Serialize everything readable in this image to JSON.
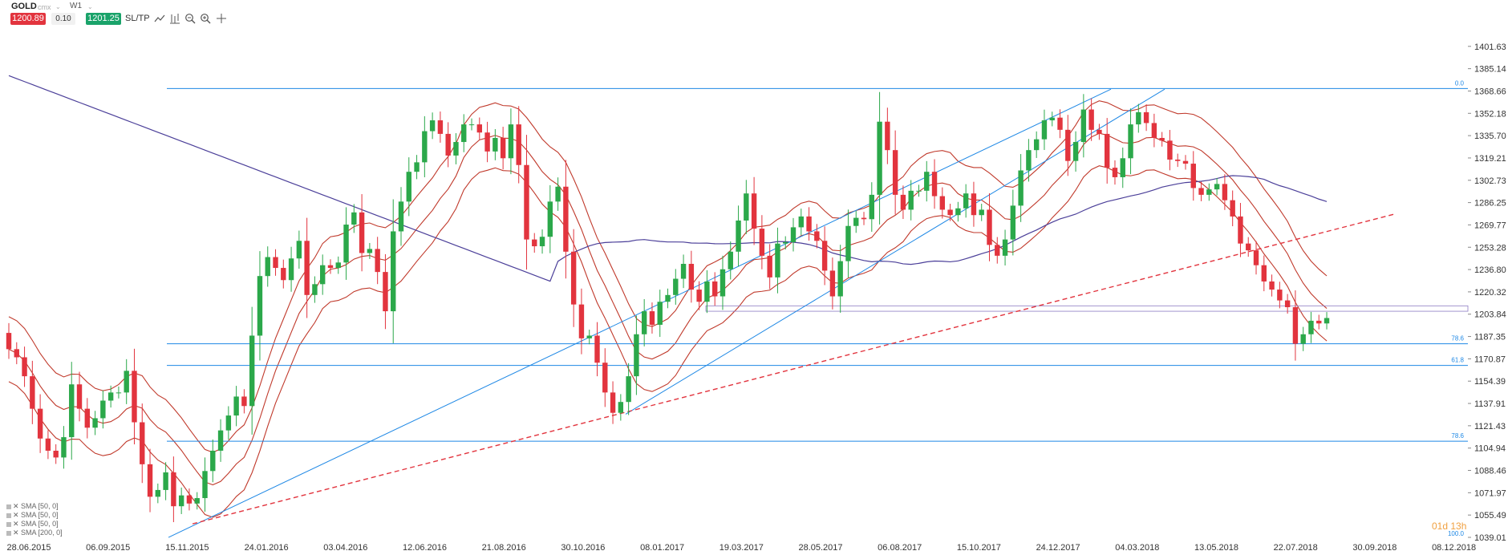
{
  "toolbar": {
    "symbol": "GOLD",
    "symbol_sub": "cmx",
    "timeframe": "W1",
    "sell_price": "1200.89",
    "volume": "0.10",
    "buy_price": "1201.25",
    "sltp_label": "SL/TP",
    "icons": [
      "line-tool-icon",
      "bars-icon",
      "zoom-out-icon",
      "zoom-in-icon",
      "crosshair-icon"
    ]
  },
  "colors": {
    "bull": "#2ba84a",
    "bear": "#e2343e",
    "fib": "#1e88e5",
    "trend": "#1e88e5",
    "dashed": "#e2343e",
    "envelope": "#c0392b",
    "sma200": "#4b3f99",
    "zone": "#8e7cc3",
    "timer": "#f0a040"
  },
  "legend": [
    "SMA [50, 0]",
    "SMA [50, 0]",
    "SMA [50, 0]",
    "SMA [200, 0]"
  ],
  "timer": "01d 13h",
  "chart_data": {
    "type": "candlestick",
    "ylim": [
      1039.01,
      1418.1
    ],
    "y_ticks": [
      "1401.63",
      "1385.14",
      "1368.66",
      "1352.18",
      "1335.70",
      "1319.21",
      "1302.73",
      "1286.25",
      "1269.77",
      "1253.28",
      "1236.80",
      "1220.32",
      "1203.84",
      "1187.35",
      "1170.87",
      "1154.39",
      "1137.91",
      "1121.43",
      "1104.94",
      "1088.46",
      "1071.97",
      "1055.49",
      "1039.01"
    ],
    "x_ticks": [
      "28.06.2015",
      "06.09.2015",
      "15.11.2015",
      "24.01.2016",
      "03.04.2016",
      "12.06.2016",
      "21.08.2016",
      "30.10.2016",
      "08.01.2017",
      "19.03.2017",
      "28.05.2017",
      "06.08.2017",
      "15.10.2017",
      "24.12.2017",
      "04.03.2018",
      "13.05.2018",
      "22.07.2018",
      "30.09.2018",
      "08.12.2018"
    ],
    "fib_levels": [
      {
        "label": "0.0",
        "value": 1370.5
      },
      {
        "label": "78.6",
        "value": 1182.0
      },
      {
        "label": "61.8",
        "value": 1166.0
      },
      {
        "label": "78.6",
        "value": 1110.0
      },
      {
        "label": "100.0",
        "value": 1039.01
      }
    ],
    "closes": [
      1178,
      1172,
      1158,
      1134,
      1112,
      1103,
      1098,
      1113,
      1152,
      1134,
      1120,
      1127,
      1140,
      1146,
      1146,
      1162,
      1124,
      1093,
      1069,
      1074,
      1087,
      1062,
      1070,
      1064,
      1068,
      1088,
      1103,
      1118,
      1129,
      1143,
      1136,
      1188,
      1232,
      1246,
      1238,
      1229,
      1245,
      1258,
      1218,
      1226,
      1240,
      1238,
      1242,
      1270,
      1279,
      1249,
      1252,
      1235,
      1206,
      1265,
      1287,
      1309,
      1316,
      1339,
      1347,
      1337,
      1321,
      1331,
      1344,
      1344,
      1338,
      1324,
      1334,
      1319,
      1344,
      1314,
      1259,
      1254,
      1261,
      1287,
      1298,
      1250,
      1211,
      1186,
      1188,
      1168,
      1146,
      1131,
      1139,
      1158,
      1189,
      1206,
      1196,
      1213,
      1218,
      1230,
      1241,
      1222,
      1213,
      1228,
      1217,
      1237,
      1250,
      1273,
      1293,
      1267,
      1247,
      1231,
      1256,
      1257,
      1268,
      1276,
      1265,
      1258,
      1236,
      1217,
      1243,
      1269,
      1275,
      1274,
      1292,
      1346,
      1325,
      1292,
      1281,
      1295,
      1295,
      1309,
      1291,
      1281,
      1277,
      1282,
      1293,
      1277,
      1281,
      1255,
      1247,
      1259,
      1284,
      1310,
      1325,
      1333,
      1347,
      1349,
      1340,
      1317,
      1331,
      1355,
      1340,
      1337,
      1312,
      1305,
      1319,
      1344,
      1353,
      1345,
      1334,
      1332,
      1318,
      1317,
      1315,
      1297,
      1292,
      1296,
      1300,
      1288,
      1276,
      1256,
      1251,
      1240,
      1228,
      1222,
      1214,
      1209,
      1182,
      1189,
      1199,
      1197,
      1201
    ]
  }
}
